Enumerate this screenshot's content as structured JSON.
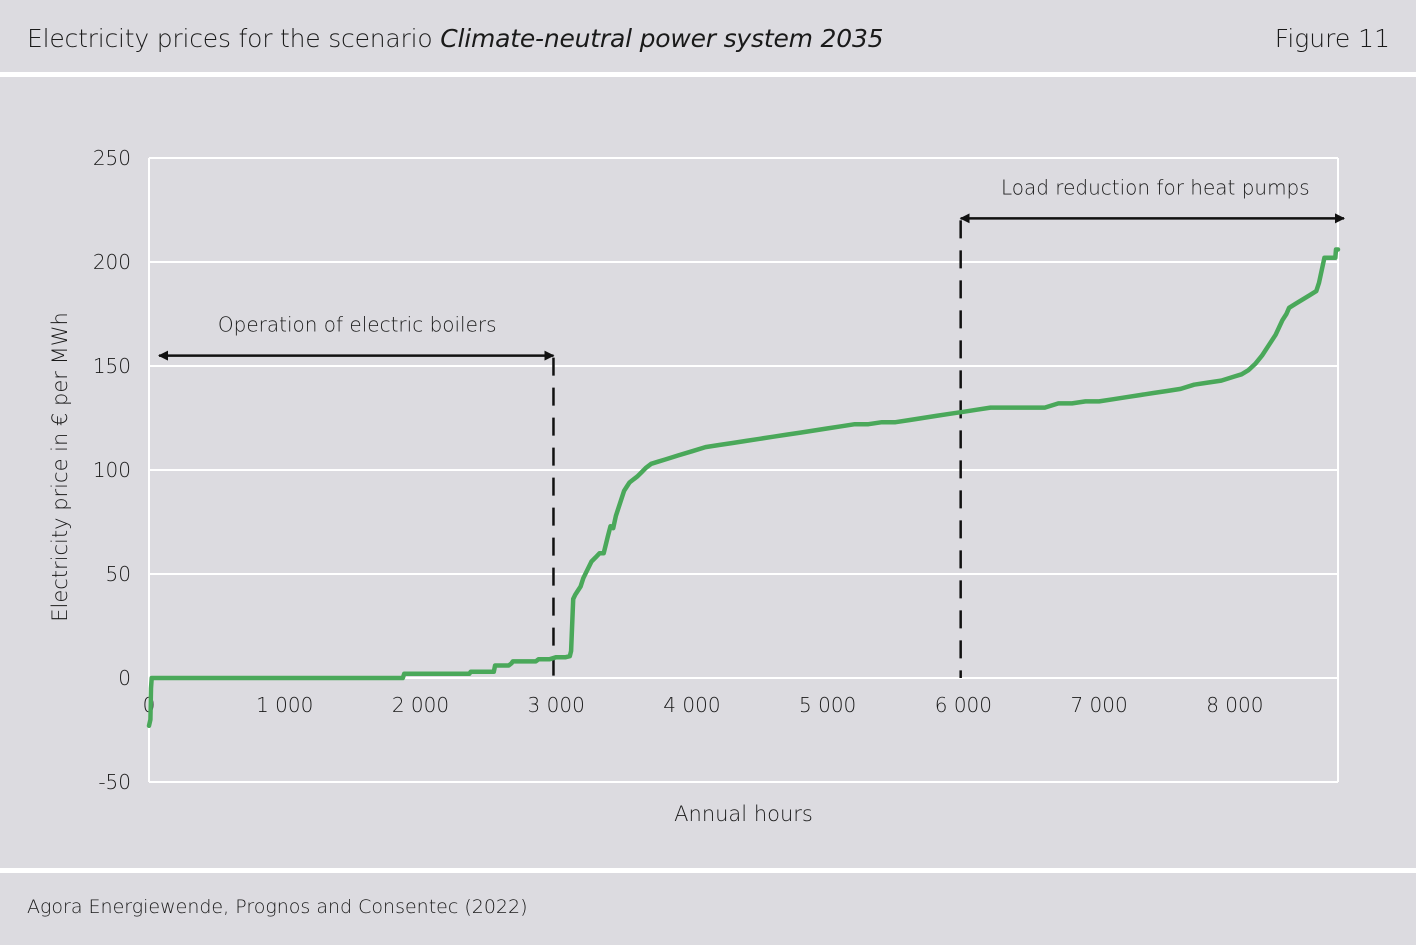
{
  "header": {
    "title_prefix": "Electricity prices for the scenario ",
    "title_italic": "Climate-neutral power system 2035",
    "figure_label": "Figure 11"
  },
  "footer": {
    "source": "Agora Energiewende, Prognos and Consentec (2022)"
  },
  "colors": {
    "background": "#dcdbe0",
    "line": "#4aa85a",
    "grid": "#ffffff",
    "annotation": "#111111"
  },
  "chart_data": {
    "type": "line",
    "title": "Electricity prices for the scenario Climate-neutral power system 2035",
    "xlabel": "Annual hours",
    "ylabel": "Electricity price in € per MWh",
    "xlim": [
      0,
      8760
    ],
    "ylim": [
      -50,
      250
    ],
    "x_ticks": [
      0,
      1000,
      2000,
      3000,
      4000,
      5000,
      6000,
      7000,
      8000
    ],
    "x_tick_labels": [
      "0",
      "1 000",
      "2 000",
      "3 000",
      "4 000",
      "5 000",
      "6 000",
      "7 000",
      "8 000"
    ],
    "y_ticks": [
      -50,
      0,
      50,
      100,
      150,
      200,
      250
    ],
    "y_tick_labels": [
      "-50",
      "0",
      "50",
      "100",
      "150",
      "200",
      "250"
    ],
    "grid": true,
    "series": [
      {
        "x": [
          0,
          10,
          15,
          20,
          500,
          1000,
          1500,
          1870,
          1880,
          2000,
          2300,
          2360,
          2370,
          2500,
          2540,
          2550,
          2650,
          2670,
          2680,
          2800,
          2850,
          2870,
          2950,
          3000,
          3070,
          3100,
          3110,
          3125,
          3140,
          3160,
          3180,
          3200,
          3230,
          3260,
          3290,
          3320,
          3350,
          3380,
          3400,
          3420,
          3440,
          3470,
          3500,
          3520,
          3540,
          3560,
          3580,
          3600,
          3630,
          3660,
          3700,
          3750,
          3800,
          3850,
          3900,
          4000,
          4100,
          4200,
          4300,
          4400,
          4500,
          4600,
          4700,
          4800,
          4900,
          5000,
          5100,
          5200,
          5300,
          5400,
          5500,
          5600,
          5700,
          5800,
          5900,
          6000,
          6100,
          6200,
          6300,
          6400,
          6500,
          6600,
          6650,
          6700,
          6800,
          6900,
          7000,
          7100,
          7200,
          7300,
          7400,
          7500,
          7600,
          7700,
          7800,
          7900,
          8000,
          8050,
          8100,
          8150,
          8200,
          8250,
          8300,
          8350,
          8380,
          8400,
          8450,
          8500,
          8550,
          8600,
          8620,
          8640,
          8660,
          8680,
          8700,
          8720,
          8740,
          8745,
          8760
        ],
        "y": [
          -23,
          -20,
          -5,
          0,
          0,
          0,
          0,
          0,
          2,
          2,
          2,
          2,
          3,
          3,
          3,
          6,
          6,
          7,
          8,
          8,
          8,
          9,
          9,
          10,
          10,
          10.5,
          13,
          38,
          40,
          42,
          44,
          48,
          52,
          56,
          58,
          60,
          60,
          68,
          73,
          72,
          78,
          84,
          90,
          92,
          94,
          95,
          96,
          97,
          99,
          101,
          103,
          104,
          105,
          106,
          107,
          109,
          111,
          112,
          113,
          114,
          115,
          116,
          117,
          118,
          119,
          120,
          121,
          122,
          122,
          123,
          123,
          124,
          125,
          126,
          127,
          128,
          129,
          130,
          130,
          130,
          130,
          130,
          131,
          132,
          132,
          133,
          133,
          134,
          135,
          136,
          137,
          138,
          139,
          141,
          142,
          143,
          145,
          146,
          148,
          151,
          155,
          160,
          165,
          172,
          175,
          178,
          180,
          182,
          184,
          186,
          190,
          196,
          202,
          202,
          202,
          202,
          202,
          206,
          206
        ]
      }
    ],
    "annotations": [
      {
        "text": "Operation of electric boilers",
        "x_range": [
          0,
          2980
        ],
        "y": 155,
        "marker_x": 2980
      },
      {
        "text": "Load reduction for heat pumps",
        "x_range": [
          5980,
          8760
        ],
        "y": 221,
        "marker_x": 5980
      }
    ]
  }
}
